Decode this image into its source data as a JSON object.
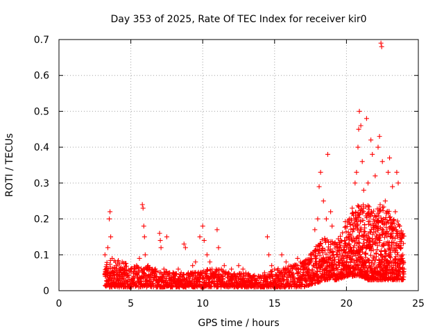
{
  "chart_data": {
    "type": "scatter",
    "title": "Day 353 of 2025, Rate Of TEC Index for receiver kir0",
    "xlabel": "GPS time / hours",
    "ylabel": "ROTI / TECUs",
    "xlim": [
      0,
      25
    ],
    "ylim": [
      0,
      0.7
    ],
    "xticks": [
      "0",
      "5",
      "10",
      "15",
      "20",
      "25"
    ],
    "yticks": [
      "0",
      "0.1",
      "0.2",
      "0.3",
      "0.4",
      "0.5",
      "0.6",
      "0.7"
    ],
    "grid": true,
    "marker": "+",
    "color": "#ff0000",
    "series": [
      {
        "points": [
          [
            3.2,
            0.1
          ],
          [
            3.3,
            0.06
          ],
          [
            3.4,
            0.12
          ],
          [
            3.5,
            0.2
          ],
          [
            3.55,
            0.22
          ],
          [
            3.6,
            0.15
          ],
          [
            3.7,
            0.09
          ],
          [
            3.8,
            0.05
          ],
          [
            4.0,
            0.07
          ],
          [
            4.2,
            0.04
          ],
          [
            4.4,
            0.08
          ],
          [
            4.6,
            0.05
          ],
          [
            4.8,
            0.03
          ],
          [
            5.0,
            0.06
          ],
          [
            5.2,
            0.04
          ],
          [
            5.4,
            0.07
          ],
          [
            5.6,
            0.09
          ],
          [
            5.8,
            0.24
          ],
          [
            5.85,
            0.23
          ],
          [
            5.9,
            0.18
          ],
          [
            5.95,
            0.15
          ],
          [
            6.0,
            0.1
          ],
          [
            6.2,
            0.07
          ],
          [
            6.5,
            0.05
          ],
          [
            6.8,
            0.04
          ],
          [
            7.0,
            0.16
          ],
          [
            7.05,
            0.14
          ],
          [
            7.1,
            0.12
          ],
          [
            7.3,
            0.06
          ],
          [
            7.5,
            0.15
          ],
          [
            7.7,
            0.05
          ],
          [
            8.0,
            0.04
          ],
          [
            8.3,
            0.06
          ],
          [
            8.5,
            0.05
          ],
          [
            8.7,
            0.13
          ],
          [
            8.8,
            0.12
          ],
          [
            9.0,
            0.05
          ],
          [
            9.3,
            0.07
          ],
          [
            9.5,
            0.08
          ],
          [
            9.8,
            0.15
          ],
          [
            10.0,
            0.18
          ],
          [
            10.1,
            0.14
          ],
          [
            10.3,
            0.1
          ],
          [
            10.5,
            0.08
          ],
          [
            10.8,
            0.05
          ],
          [
            11.0,
            0.17
          ],
          [
            11.1,
            0.12
          ],
          [
            11.3,
            0.06
          ],
          [
            11.5,
            0.07
          ],
          [
            11.8,
            0.05
          ],
          [
            12.0,
            0.06
          ],
          [
            12.3,
            0.04
          ],
          [
            12.5,
            0.07
          ],
          [
            12.8,
            0.06
          ],
          [
            13.0,
            0.05
          ],
          [
            13.3,
            0.04
          ],
          [
            13.6,
            0.03
          ],
          [
            14.0,
            0.04
          ],
          [
            14.3,
            0.05
          ],
          [
            14.5,
            0.15
          ],
          [
            14.6,
            0.1
          ],
          [
            14.8,
            0.07
          ],
          [
            15.0,
            0.06
          ],
          [
            15.3,
            0.05
          ],
          [
            15.5,
            0.1
          ],
          [
            15.8,
            0.08
          ],
          [
            16.0,
            0.06
          ],
          [
            16.3,
            0.07
          ],
          [
            16.6,
            0.09
          ],
          [
            16.8,
            0.08
          ],
          [
            17.0,
            0.06
          ],
          [
            17.3,
            0.05
          ],
          [
            17.5,
            0.08
          ],
          [
            17.8,
            0.17
          ],
          [
            18.0,
            0.2
          ],
          [
            18.1,
            0.29
          ],
          [
            18.2,
            0.33
          ],
          [
            18.4,
            0.25
          ],
          [
            18.6,
            0.2
          ],
          [
            18.7,
            0.38
          ],
          [
            18.9,
            0.22
          ],
          [
            19.0,
            0.18
          ],
          [
            19.3,
            0.1
          ],
          [
            19.6,
            0.12
          ],
          [
            19.9,
            0.14
          ],
          [
            20.2,
            0.2
          ],
          [
            20.4,
            0.23
          ],
          [
            20.6,
            0.3
          ],
          [
            20.7,
            0.33
          ],
          [
            20.8,
            0.4
          ],
          [
            20.85,
            0.45
          ],
          [
            20.9,
            0.5
          ],
          [
            21.0,
            0.46
          ],
          [
            21.1,
            0.36
          ],
          [
            21.2,
            0.28
          ],
          [
            21.4,
            0.48
          ],
          [
            21.5,
            0.3
          ],
          [
            21.7,
            0.42
          ],
          [
            21.8,
            0.38
          ],
          [
            22.0,
            0.32
          ],
          [
            22.2,
            0.4
          ],
          [
            22.3,
            0.43
          ],
          [
            22.4,
            0.69
          ],
          [
            22.45,
            0.68
          ],
          [
            22.5,
            0.36
          ],
          [
            22.7,
            0.25
          ],
          [
            22.9,
            0.33
          ],
          [
            23.0,
            0.37
          ],
          [
            23.2,
            0.29
          ],
          [
            23.4,
            0.22
          ],
          [
            23.5,
            0.33
          ],
          [
            23.6,
            0.3
          ],
          [
            23.7,
            0.18
          ],
          [
            23.8,
            0.12
          ],
          [
            23.9,
            0.09
          ],
          [
            24.0,
            0.06
          ]
        ]
      }
    ],
    "dense_envelope": {
      "x": [
        3.2,
        4,
        5,
        6,
        7,
        8,
        9,
        10,
        11,
        12,
        13,
        14,
        15,
        16,
        17,
        17.8,
        18.5,
        19,
        19.5,
        20,
        20.5,
        21,
        21.5,
        22,
        22.5,
        23,
        23.5,
        24
      ],
      "y_low": [
        0.01,
        0.01,
        0.01,
        0.01,
        0.01,
        0.01,
        0.01,
        0.01,
        0.01,
        0.01,
        0.01,
        0.01,
        0.01,
        0.01,
        0.01,
        0.02,
        0.03,
        0.03,
        0.03,
        0.04,
        0.04,
        0.04,
        0.03,
        0.03,
        0.03,
        0.03,
        0.03,
        0.03
      ],
      "y_high": [
        0.08,
        0.09,
        0.07,
        0.07,
        0.06,
        0.05,
        0.05,
        0.06,
        0.06,
        0.05,
        0.05,
        0.04,
        0.06,
        0.07,
        0.08,
        0.12,
        0.15,
        0.14,
        0.15,
        0.2,
        0.22,
        0.25,
        0.24,
        0.22,
        0.25,
        0.22,
        0.2,
        0.16
      ]
    }
  }
}
